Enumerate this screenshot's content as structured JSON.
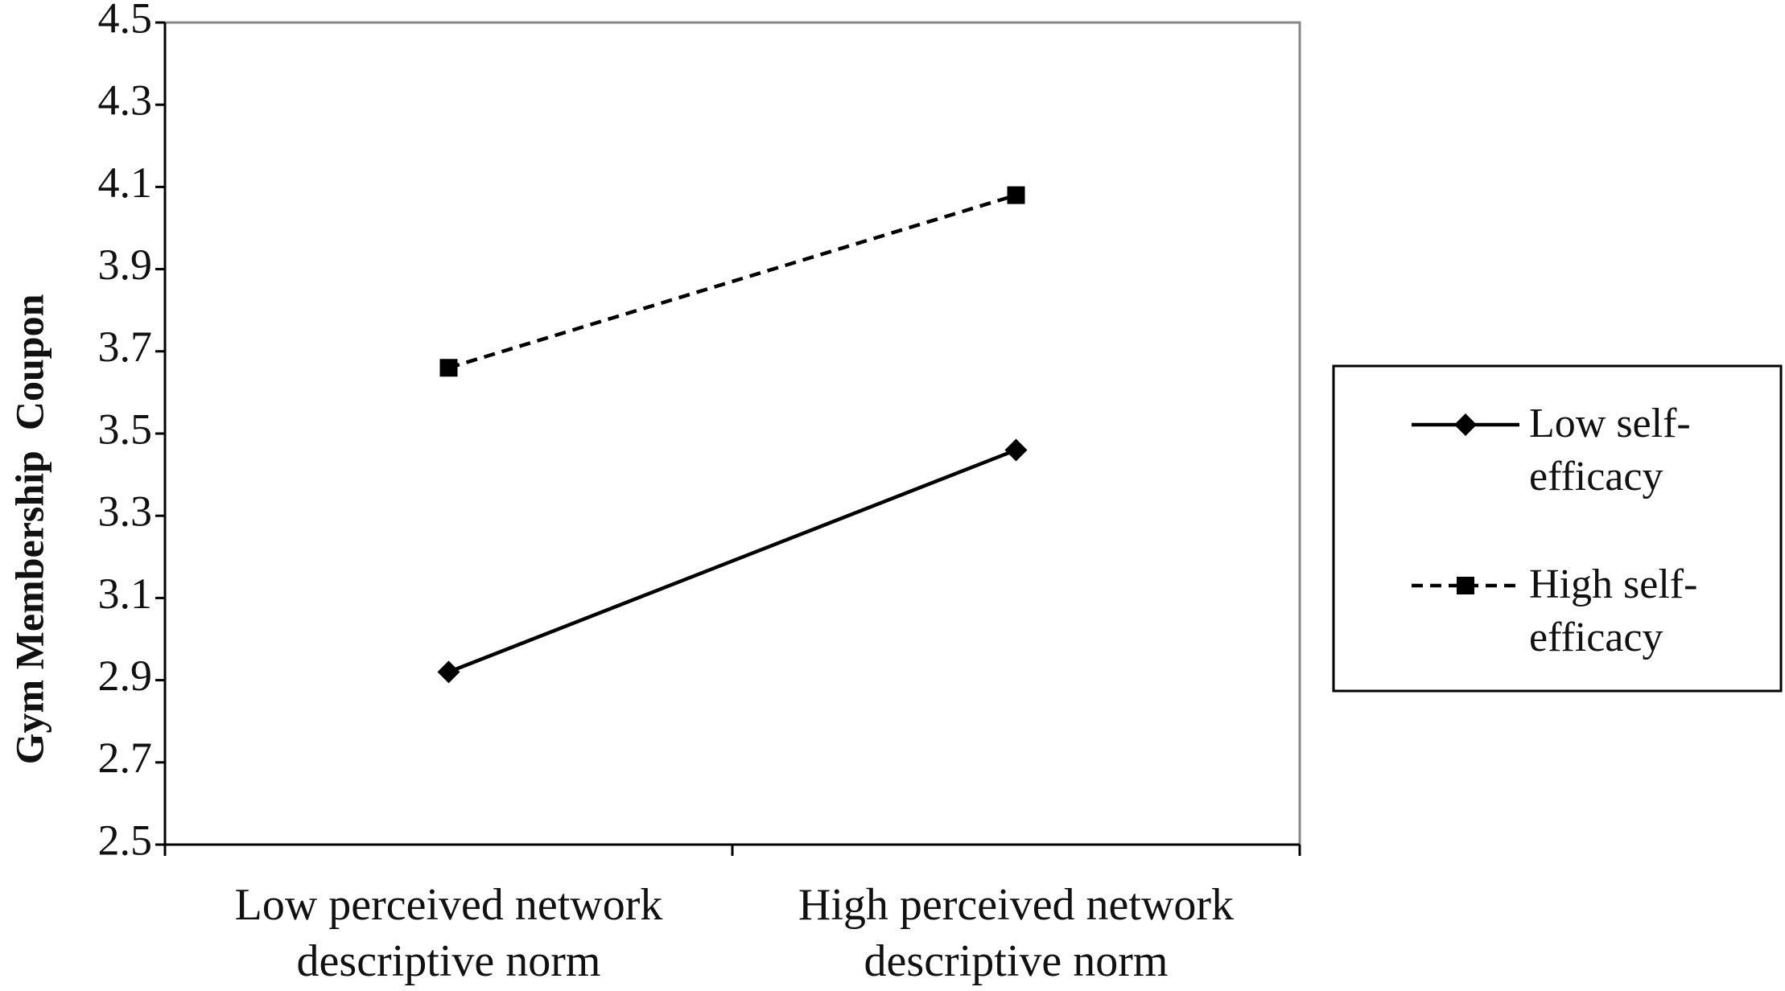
{
  "chart_data": {
    "type": "line",
    "y_label": "Gym Membership  Coupon",
    "categories": [
      "Low perceived network descriptive norm",
      "High perceived network descriptive norm"
    ],
    "series": [
      {
        "name": "Low self-efficacy",
        "color": "#000000",
        "dash": "solid",
        "marker": "diamond",
        "values": [
          2.92,
          3.46
        ]
      },
      {
        "name": "High self-efficacy",
        "color": "#000000",
        "dash": "dashed",
        "marker": "square",
        "values": [
          3.66,
          4.08
        ]
      }
    ],
    "ylim": [
      2.5,
      4.5
    ],
    "yticks": [
      {
        "value": 2.5,
        "label": "2.5"
      },
      {
        "value": 2.7,
        "label": "2.7"
      },
      {
        "value": 2.9,
        "label": "2.9"
      },
      {
        "value": 3.1,
        "label": "3.1"
      },
      {
        "value": 3.3,
        "label": "3.3"
      },
      {
        "value": 3.5,
        "label": "3.5"
      },
      {
        "value": 3.7,
        "label": "3.7"
      },
      {
        "value": 3.9,
        "label": "3.9"
      },
      {
        "value": 4.1,
        "label": "4.1"
      },
      {
        "value": 4.3,
        "label": "4.3"
      },
      {
        "value": 4.5,
        "label": "4.5"
      }
    ],
    "grid": false,
    "legend": "right"
  }
}
